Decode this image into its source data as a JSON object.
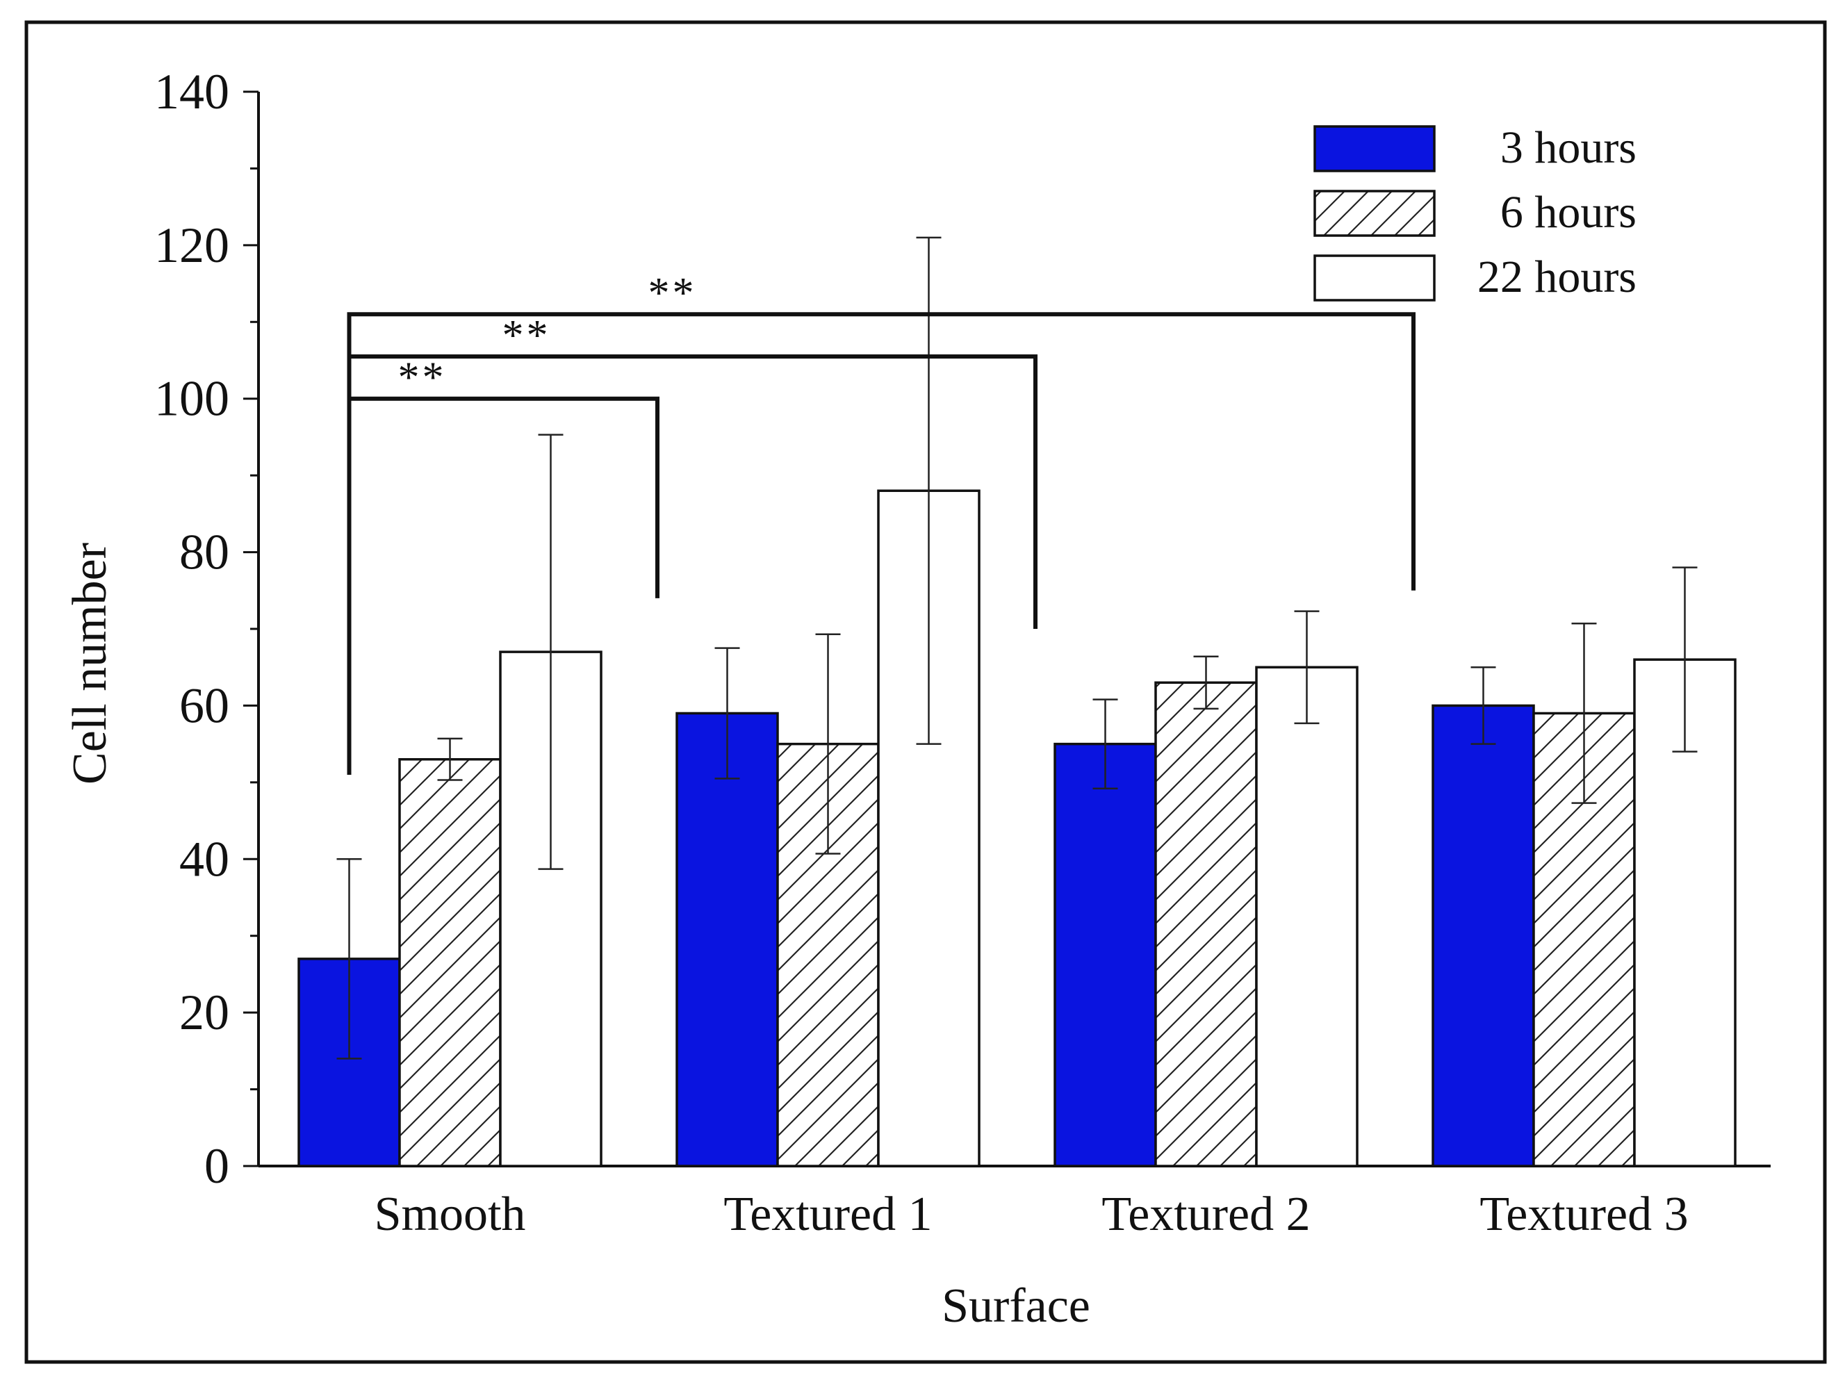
{
  "chart_data": {
    "type": "bar",
    "title": "",
    "xlabel": "Surface",
    "ylabel": "Cell number",
    "ylim": [
      0,
      140
    ],
    "yticks": [
      0,
      20,
      40,
      60,
      80,
      100,
      120,
      140
    ],
    "grid": false,
    "legend_position": "top-right",
    "categories": [
      "Smooth",
      "Textured 1",
      "Textured 2",
      "Textured 3"
    ],
    "series": [
      {
        "name": "3 hours",
        "style": "solid",
        "color": "#0a14e0",
        "values": [
          27,
          59,
          55,
          60
        ],
        "errors": [
          13,
          8.5,
          5.8,
          5
        ]
      },
      {
        "name": "6 hours",
        "style": "hatched",
        "color": "#ffffff",
        "values": [
          53,
          55,
          63,
          59
        ],
        "errors": [
          2.7,
          14.3,
          3.4,
          11.7
        ]
      },
      {
        "name": "22 hours",
        "style": "open",
        "color": "#ffffff",
        "values": [
          67,
          88,
          65,
          66
        ],
        "errors": [
          28.3,
          33,
          7.3,
          12
        ]
      }
    ],
    "annotations": [
      {
        "label": "**",
        "from": "Smooth",
        "to": "Textured 1",
        "level": 100,
        "from_bottom": 51,
        "to_bottom": 74
      },
      {
        "label": "**",
        "from": "Smooth",
        "to": "Textured 2",
        "level": 105.5,
        "from_bottom": 51,
        "to_bottom": 70
      },
      {
        "label": "**",
        "from": "Smooth",
        "to": "Textured 3",
        "level": 111,
        "from_bottom": 51,
        "to_bottom": 75
      }
    ]
  }
}
